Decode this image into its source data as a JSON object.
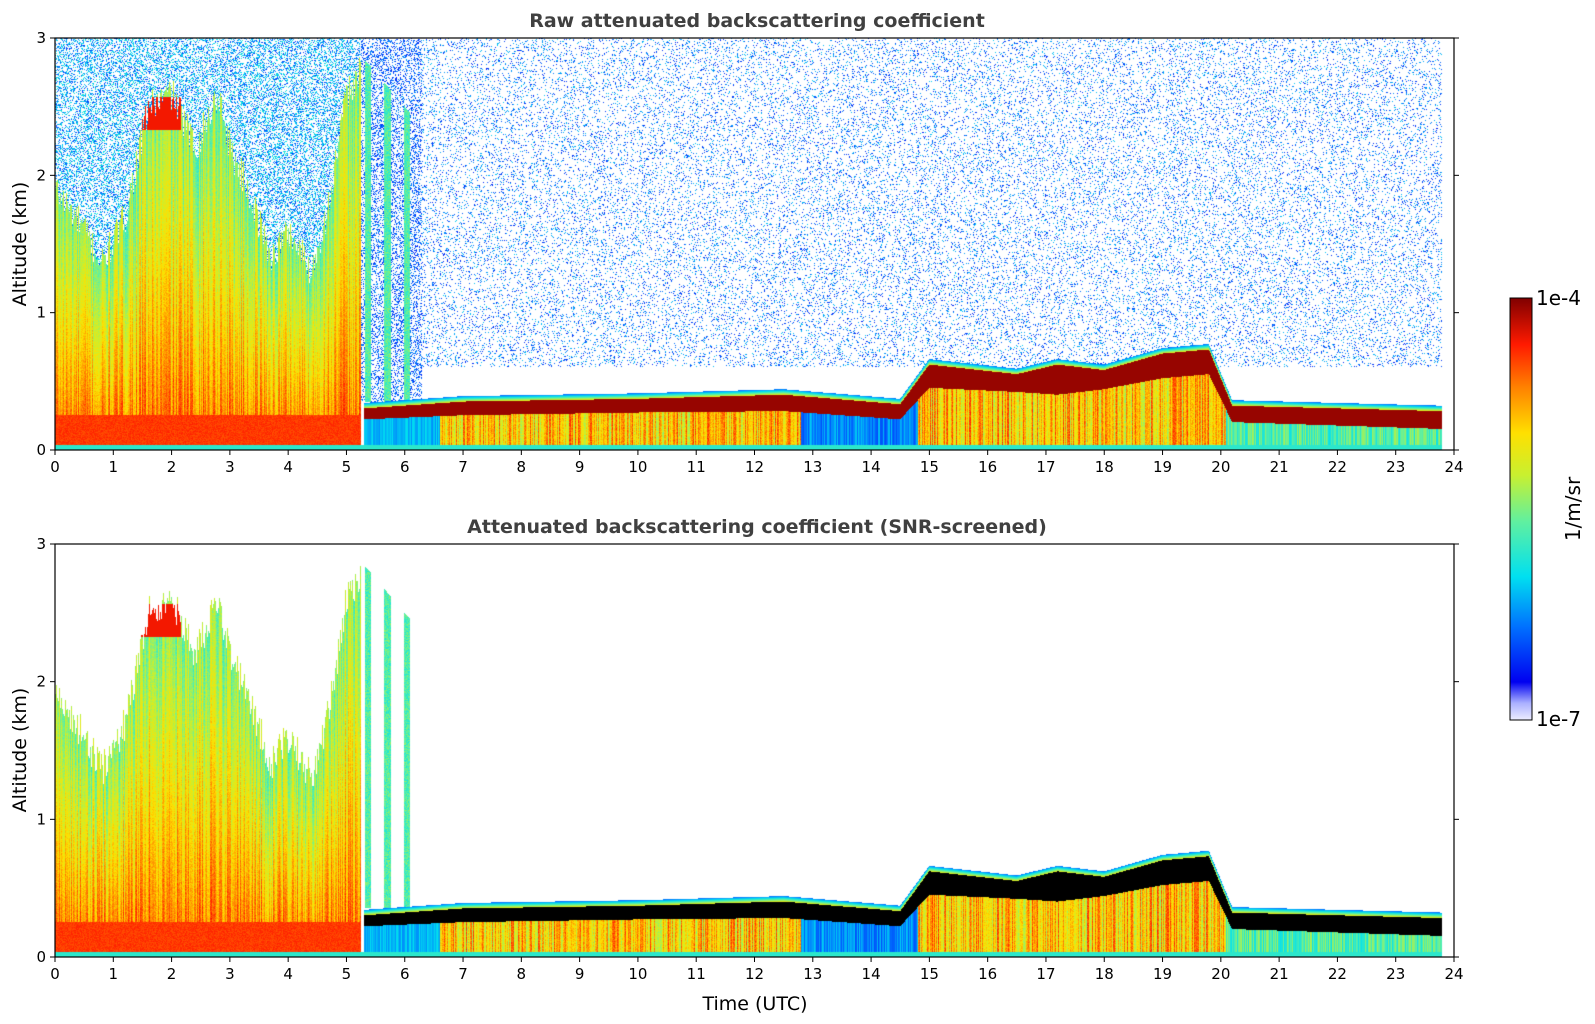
{
  "chart_data": [
    {
      "type": "heatmap",
      "title": "Raw attenuated backscattering coefficient",
      "xlabel": "",
      "ylabel": "Altitude (km)",
      "xlim": [
        0,
        24
      ],
      "ylim": [
        0,
        3
      ],
      "x_ticks": [
        "0",
        "1",
        "2",
        "3",
        "4",
        "5",
        "6",
        "7",
        "8",
        "9",
        "10",
        "11",
        "12",
        "13",
        "14",
        "15",
        "16",
        "17",
        "18",
        "19",
        "20",
        "21",
        "22",
        "23",
        "24"
      ],
      "y_ticks": [
        "0",
        "1",
        "2",
        "3"
      ],
      "color_scale": "log",
      "clim": [
        1e-07,
        0.0001
      ],
      "cloud_layer_km": [
        {
          "t": 5.3,
          "base": 0.22,
          "top": 0.3
        },
        {
          "t": 7,
          "base": 0.25,
          "top": 0.35
        },
        {
          "t": 10,
          "base": 0.27,
          "top": 0.37
        },
        {
          "t": 12.5,
          "base": 0.28,
          "top": 0.4
        },
        {
          "t": 14.5,
          "base": 0.22,
          "top": 0.33
        },
        {
          "t": 15,
          "base": 0.45,
          "top": 0.62
        },
        {
          "t": 16.5,
          "base": 0.42,
          "top": 0.55
        },
        {
          "t": 17.2,
          "base": 0.4,
          "top": 0.62
        },
        {
          "t": 18,
          "base": 0.44,
          "top": 0.58
        },
        {
          "t": 19,
          "base": 0.52,
          "top": 0.7
        },
        {
          "t": 19.8,
          "base": 0.55,
          "top": 0.73
        },
        {
          "t": 20.2,
          "base": 0.2,
          "top": 0.32
        },
        {
          "t": 23.8,
          "base": 0.15,
          "top": 0.28
        }
      ],
      "noise": true,
      "colorbar_ref": true
    },
    {
      "type": "heatmap",
      "title": "Attenuated backscattering coefficient (SNR-screened)",
      "xlabel": "Time (UTC)",
      "ylabel": "Altitude (km)",
      "xlim": [
        0,
        24
      ],
      "ylim": [
        0,
        3
      ],
      "x_ticks": [
        "0",
        "1",
        "2",
        "3",
        "4",
        "5",
        "6",
        "7",
        "8",
        "9",
        "10",
        "11",
        "12",
        "13",
        "14",
        "15",
        "16",
        "17",
        "18",
        "19",
        "20",
        "21",
        "22",
        "23",
        "24"
      ],
      "y_ticks": [
        "0",
        "1",
        "2",
        "3"
      ],
      "color_scale": "log",
      "clim": [
        1e-07,
        0.0001
      ],
      "noise": false,
      "screened_fill": "black"
    }
  ],
  "colorbar": {
    "label": "1/m/sr",
    "max_label": "1e-4",
    "min_label": "1e-7",
    "colormap": "jet"
  }
}
